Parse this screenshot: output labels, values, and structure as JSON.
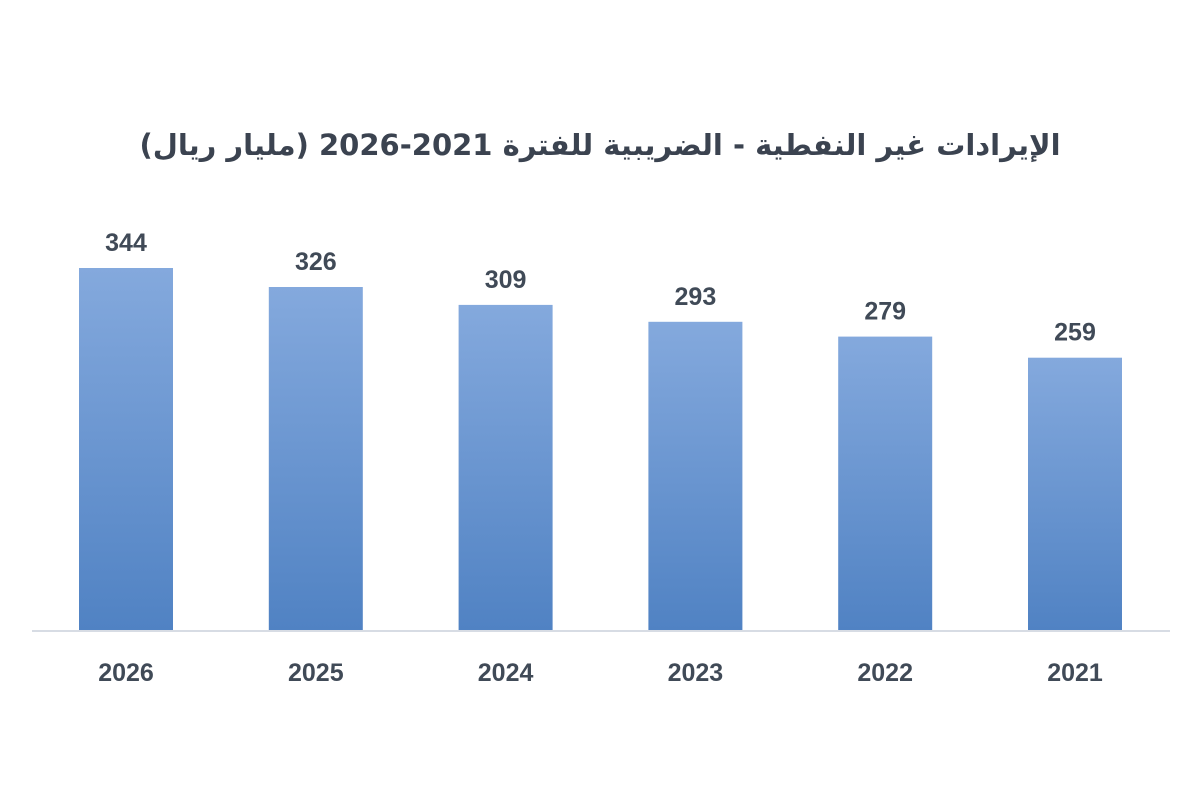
{
  "chart_data": {
    "type": "bar",
    "title": "الإيرادات غير النفطية - الضريبية للفترة 2021-2026 (مليار ريال)",
    "categories": [
      "2026",
      "2025",
      "2024",
      "2023",
      "2022",
      "2021"
    ],
    "values": [
      344,
      326,
      309,
      293,
      279,
      259
    ],
    "ylim": [
      0,
      344
    ],
    "show_value_labels": true,
    "grid": false,
    "legend": "none",
    "colors": {
      "bar_top": "#84a9dd",
      "bar_bottom": "#5082c3",
      "axis": "#d7dce4",
      "text": "#404a57"
    }
  }
}
